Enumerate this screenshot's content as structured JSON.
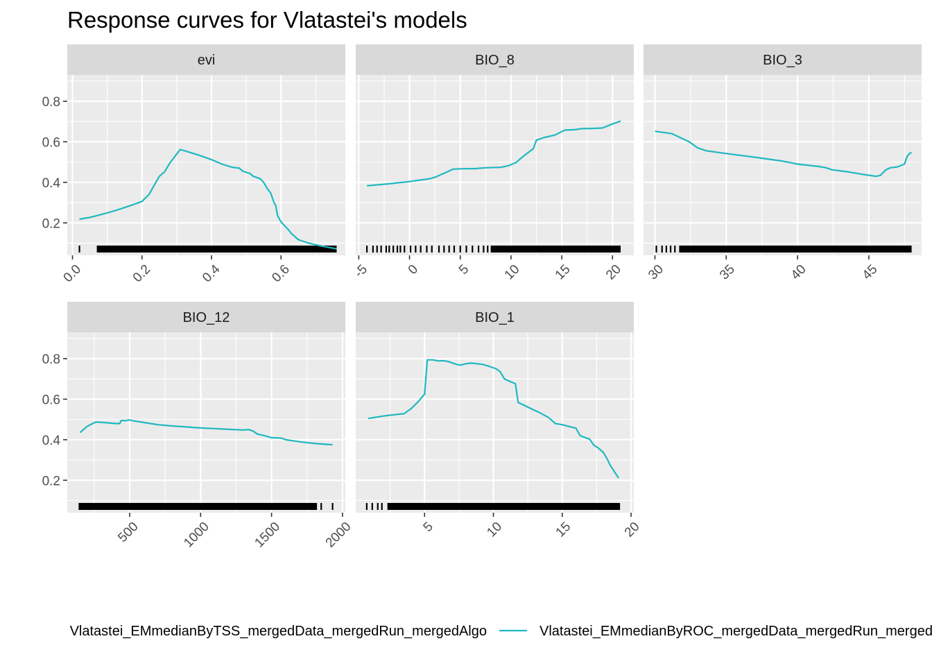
{
  "chart_data": {
    "type": "line",
    "title": "Response curves for Vlatastei's models",
    "ylim": [
      0.04,
      0.93
    ],
    "y_ticks": [
      "0.2",
      "0.4",
      "0.6",
      "0.8"
    ],
    "y_tick_values": [
      0.2,
      0.4,
      0.6,
      0.8
    ],
    "grid": true,
    "legend_position": "bottom",
    "colors": {
      "panel_bg": "#ebebeb",
      "strip_bg": "#d9d9d9",
      "grid": "#ffffff",
      "tick": "#333333",
      "rug": "#000000",
      "series_roc": "#1eb8c0",
      "series_tss": "#f8766d"
    },
    "series": [
      {
        "name": "Vlatastei_EMmedianByTSS_mergedData_mergedRun_mergedAlgo",
        "color": "#f8766d"
      },
      {
        "name": "Vlatastei_EMmedianByROC_mergedData_mergedRun_mergedAlgo",
        "color": "#1eb8c0"
      }
    ],
    "panels": [
      {
        "label": "evi",
        "xlim": [
          -0.015,
          0.785
        ],
        "x_ticks": [
          "0.0",
          "0.2",
          "0.4",
          "0.6"
        ],
        "x_tick_values": [
          0.0,
          0.2,
          0.4,
          0.6
        ],
        "x_minor": [
          0.1,
          0.3,
          0.5,
          0.7
        ],
        "rug_range": [
          0.07,
          0.76
        ],
        "rug_singles": [
          0.02
        ],
        "points": [
          [
            0.02,
            0.218
          ],
          [
            0.05,
            0.227
          ],
          [
            0.08,
            0.24
          ],
          [
            0.11,
            0.254
          ],
          [
            0.14,
            0.27
          ],
          [
            0.17,
            0.287
          ],
          [
            0.2,
            0.306
          ],
          [
            0.22,
            0.34
          ],
          [
            0.235,
            0.385
          ],
          [
            0.25,
            0.43
          ],
          [
            0.265,
            0.452
          ],
          [
            0.28,
            0.495
          ],
          [
            0.3,
            0.54
          ],
          [
            0.31,
            0.562
          ],
          [
            0.33,
            0.552
          ],
          [
            0.36,
            0.536
          ],
          [
            0.4,
            0.512
          ],
          [
            0.43,
            0.49
          ],
          [
            0.46,
            0.474
          ],
          [
            0.48,
            0.47
          ],
          [
            0.49,
            0.455
          ],
          [
            0.51,
            0.444
          ],
          [
            0.52,
            0.43
          ],
          [
            0.54,
            0.418
          ],
          [
            0.55,
            0.4
          ],
          [
            0.56,
            0.37
          ],
          [
            0.57,
            0.348
          ],
          [
            0.58,
            0.3
          ],
          [
            0.585,
            0.285
          ],
          [
            0.59,
            0.235
          ],
          [
            0.6,
            0.205
          ],
          [
            0.62,
            0.168
          ],
          [
            0.63,
            0.147
          ],
          [
            0.65,
            0.117
          ],
          [
            0.68,
            0.1
          ],
          [
            0.72,
            0.084
          ],
          [
            0.76,
            0.072
          ]
        ]
      },
      {
        "label": "BIO_8",
        "xlim": [
          -5.3,
          22.1
        ],
        "x_ticks": [
          "-5",
          "0",
          "5",
          "10",
          "15",
          "20"
        ],
        "x_tick_values": [
          -5,
          0,
          5,
          10,
          15,
          20
        ],
        "x_minor": [
          -2.5,
          2.5,
          7.5,
          12.5,
          17.5
        ],
        "rug_range": [
          8.0,
          20.8
        ],
        "rug_singles": [
          -4.2,
          -3.6,
          -3.2,
          -2.8,
          -2.3,
          -2.0,
          -1.6,
          -1.2,
          -0.9,
          -0.5,
          0.1,
          0.6,
          1.1,
          1.7,
          2.2,
          2.9,
          3.4,
          3.9,
          4.4,
          5.0,
          5.6,
          6.2,
          6.8,
          7.3,
          7.7
        ],
        "points": [
          [
            -4.2,
            0.383
          ],
          [
            -2.0,
            0.393
          ],
          [
            0.0,
            0.404
          ],
          [
            2.0,
            0.418
          ],
          [
            2.5,
            0.425
          ],
          [
            3.5,
            0.447
          ],
          [
            4.3,
            0.465
          ],
          [
            5.0,
            0.467
          ],
          [
            6.5,
            0.468
          ],
          [
            7.5,
            0.472
          ],
          [
            9.0,
            0.474
          ],
          [
            9.8,
            0.483
          ],
          [
            10.5,
            0.498
          ],
          [
            11.2,
            0.528
          ],
          [
            12.2,
            0.566
          ],
          [
            12.5,
            0.608
          ],
          [
            13.3,
            0.622
          ],
          [
            14.3,
            0.633
          ],
          [
            15.3,
            0.658
          ],
          [
            16.3,
            0.66
          ],
          [
            17.0,
            0.665
          ],
          [
            18.0,
            0.666
          ],
          [
            19.0,
            0.668
          ],
          [
            20.0,
            0.688
          ],
          [
            20.8,
            0.702
          ]
        ]
      },
      {
        "label": "BIO_3",
        "xlim": [
          29.2,
          48.7
        ],
        "x_ticks": [
          "30",
          "35",
          "40",
          "45"
        ],
        "x_tick_values": [
          30,
          35,
          40,
          45
        ],
        "x_minor": [
          32.5,
          37.5,
          42.5,
          47.5
        ],
        "rug_range": [
          31.7,
          48.0
        ],
        "rug_singles": [
          30.1,
          30.5,
          30.8,
          31.1,
          31.4
        ],
        "points": [
          [
            30.0,
            0.652
          ],
          [
            31.2,
            0.64
          ],
          [
            32.4,
            0.6
          ],
          [
            33.0,
            0.57
          ],
          [
            33.6,
            0.556
          ],
          [
            35.0,
            0.542
          ],
          [
            37.0,
            0.524
          ],
          [
            39.0,
            0.504
          ],
          [
            40.0,
            0.49
          ],
          [
            41.5,
            0.478
          ],
          [
            42.0,
            0.472
          ],
          [
            42.4,
            0.462
          ],
          [
            43.5,
            0.452
          ],
          [
            44.5,
            0.44
          ],
          [
            45.5,
            0.43
          ],
          [
            45.8,
            0.434
          ],
          [
            46.2,
            0.462
          ],
          [
            46.5,
            0.472
          ],
          [
            47.0,
            0.476
          ],
          [
            47.5,
            0.49
          ],
          [
            47.7,
            0.53
          ],
          [
            47.9,
            0.545
          ],
          [
            48.0,
            0.547
          ]
        ]
      },
      {
        "label": "BIO_12",
        "xlim": [
          60,
          2020
        ],
        "x_ticks": [
          "500",
          "1000",
          "1500",
          "2000"
        ],
        "x_tick_values": [
          500,
          1000,
          1500,
          2000
        ],
        "x_minor": [
          250,
          750,
          1250,
          1750
        ],
        "rug_range": [
          140,
          1820
        ],
        "rug_singles": [
          1850,
          1930
        ],
        "points": [
          [
            150,
            0.435
          ],
          [
            200,
            0.466
          ],
          [
            260,
            0.487
          ],
          [
            320,
            0.485
          ],
          [
            400,
            0.48
          ],
          [
            430,
            0.48
          ],
          [
            440,
            0.495
          ],
          [
            470,
            0.494
          ],
          [
            500,
            0.498
          ],
          [
            520,
            0.494
          ],
          [
            600,
            0.485
          ],
          [
            700,
            0.474
          ],
          [
            800,
            0.468
          ],
          [
            900,
            0.463
          ],
          [
            1000,
            0.458
          ],
          [
            1100,
            0.455
          ],
          [
            1200,
            0.451
          ],
          [
            1300,
            0.448
          ],
          [
            1340,
            0.45
          ],
          [
            1370,
            0.443
          ],
          [
            1400,
            0.428
          ],
          [
            1450,
            0.42
          ],
          [
            1500,
            0.41
          ],
          [
            1570,
            0.408
          ],
          [
            1600,
            0.4
          ],
          [
            1700,
            0.39
          ],
          [
            1800,
            0.382
          ],
          [
            1930,
            0.375
          ]
        ]
      },
      {
        "label": "BIO_1",
        "xlim": [
          0.0,
          20.2
        ],
        "x_ticks": [
          "5",
          "10",
          "15",
          "20"
        ],
        "x_tick_values": [
          5,
          10,
          15,
          20
        ],
        "x_minor": [
          2.5,
          7.5,
          12.5,
          17.5
        ],
        "rug_range": [
          2.3,
          19.2
        ],
        "rug_singles": [
          0.8,
          1.2,
          1.6,
          1.9
        ],
        "points": [
          [
            0.9,
            0.505
          ],
          [
            2.0,
            0.517
          ],
          [
            3.0,
            0.525
          ],
          [
            3.5,
            0.528
          ],
          [
            4.0,
            0.552
          ],
          [
            4.5,
            0.585
          ],
          [
            5.0,
            0.625
          ],
          [
            5.2,
            0.794
          ],
          [
            5.6,
            0.794
          ],
          [
            6.0,
            0.789
          ],
          [
            6.4,
            0.79
          ],
          [
            6.7,
            0.786
          ],
          [
            7.0,
            0.779
          ],
          [
            7.3,
            0.772
          ],
          [
            7.6,
            0.768
          ],
          [
            8.0,
            0.775
          ],
          [
            8.4,
            0.778
          ],
          [
            8.8,
            0.775
          ],
          [
            9.2,
            0.772
          ],
          [
            9.7,
            0.762
          ],
          [
            10.2,
            0.75
          ],
          [
            10.5,
            0.735
          ],
          [
            10.8,
            0.7
          ],
          [
            11.2,
            0.688
          ],
          [
            11.6,
            0.676
          ],
          [
            11.8,
            0.584
          ],
          [
            12.5,
            0.561
          ],
          [
            13.4,
            0.532
          ],
          [
            14.0,
            0.51
          ],
          [
            14.5,
            0.48
          ],
          [
            15.0,
            0.474
          ],
          [
            15.5,
            0.465
          ],
          [
            16.0,
            0.457
          ],
          [
            16.3,
            0.42
          ],
          [
            17.0,
            0.402
          ],
          [
            17.3,
            0.373
          ],
          [
            17.6,
            0.36
          ],
          [
            18.0,
            0.336
          ],
          [
            18.3,
            0.3
          ],
          [
            18.5,
            0.272
          ],
          [
            19.1,
            0.21
          ]
        ]
      }
    ]
  }
}
